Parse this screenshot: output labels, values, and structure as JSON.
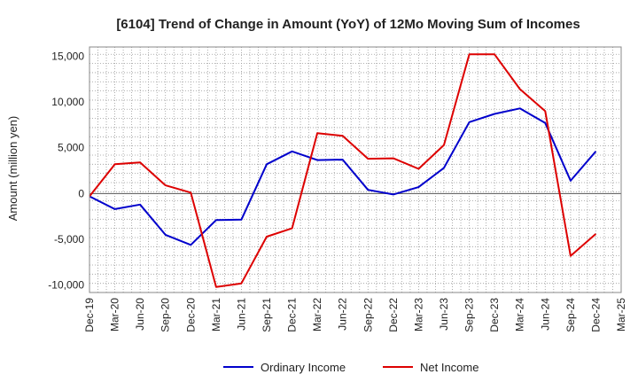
{
  "chart_data": {
    "type": "line",
    "title": "[6104]  Trend of Change in Amount (YoY) of 12Mo Moving Sum of Incomes",
    "ylabel": "Amount (million yen)",
    "xlabel": "",
    "ylim": [
      -10800,
      16000
    ],
    "y_ticks": [
      -10000,
      -5000,
      0,
      5000,
      10000,
      15000
    ],
    "y_tick_labels": [
      "-10,000",
      "-5,000",
      "0",
      "5,000",
      "10,000",
      "15,000"
    ],
    "x_tick_labels": [
      "Dec-19",
      "Mar-20",
      "Jun-20",
      "Sep-20",
      "Dec-20",
      "Mar-21",
      "Jun-21",
      "Sep-21",
      "Dec-21",
      "Mar-22",
      "Jun-22",
      "Sep-22",
      "Dec-22",
      "Mar-23",
      "Jun-23",
      "Sep-23",
      "Dec-23",
      "Mar-24",
      "Jun-24",
      "Sep-24",
      "Dec-24",
      "Mar-25"
    ],
    "grid": true,
    "legend_position": "bottom-center",
    "series": [
      {
        "name": "Ordinary Income",
        "color": "#0000cc",
        "values": [
          -300,
          -1700,
          -1200,
          -4500,
          -5600,
          -2900,
          -2850,
          3200,
          4600,
          3650,
          3700,
          400,
          -100,
          700,
          2800,
          7800,
          8700,
          9300,
          7700,
          1400,
          4600
        ]
      },
      {
        "name": "Net Income",
        "color": "#dd0000",
        "values": [
          -300,
          3200,
          3400,
          900,
          100,
          -10200,
          -9800,
          -4700,
          -3800,
          6600,
          6300,
          3800,
          3850,
          2700,
          5300,
          15200,
          15200,
          11400,
          9000,
          -6800,
          -4400
        ]
      }
    ]
  }
}
